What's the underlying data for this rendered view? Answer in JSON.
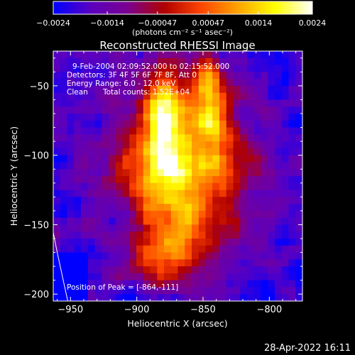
{
  "colors": {
    "background": "#000000",
    "foreground": "#ffffff",
    "colormap": [
      "#0000ff",
      "#5a00c0",
      "#7a0090",
      "#b00000",
      "#ff4500",
      "#ffa500",
      "#ffff00",
      "#ffffff"
    ]
  },
  "chart_data": {
    "type": "heatmap",
    "title": "Reconstructed RHESSI Image",
    "xlabel": "Heliocentric X (arcsec)",
    "ylabel": "Heliocentric Y (arcsec)",
    "xlim": [
      -963,
      -775
    ],
    "ylim": [
      -205,
      -25
    ],
    "xticks": [
      -950,
      -900,
      -850,
      -800
    ],
    "yticks": [
      -50,
      -100,
      -150,
      -200
    ],
    "x_tick_labels": [
      "−950",
      "−900",
      "−850",
      "−800"
    ],
    "y_tick_labels": [
      "−50",
      "−100",
      "−150",
      "−200"
    ],
    "colorbar": {
      "range": [
        -0.0024,
        0.0024
      ],
      "tick_values": [
        -0.0024,
        -0.0014,
        -0.00047,
        0.00047,
        0.0014,
        0.0024
      ],
      "tick_labels": [
        "−0.0024",
        "−0.0014",
        "−0.00047",
        "0.00047",
        "0.0014",
        "0.0024"
      ],
      "unit_label": "(photons cm⁻² s⁻¹ asec⁻²)"
    },
    "image": {
      "cols": 36,
      "rows": 36,
      "peak": [
        -864,
        -111
      ],
      "peak_value": 0.0024
    },
    "annotations": {
      "time_range": "9-Feb-2004 02:09:52.000 to 02:15:52.000",
      "detectors": "Detectors: 3F 4F 5F 6F 7F 8F, Att 0",
      "energy_range": "Energy Range: 6.0 - 12.0 keV",
      "algorithm": "Clean",
      "total_counts": "Total counts: 1.52E+04",
      "peak_text": "Position of Peak = [-864,-111]"
    },
    "limb_curve": [
      [
        -965,
        -146
      ],
      [
        -960,
        -170
      ],
      [
        -955,
        -192
      ],
      [
        -952,
        -205
      ]
    ],
    "grid": false
  },
  "footer": {
    "date": "28-Apr-2022 16:11"
  }
}
